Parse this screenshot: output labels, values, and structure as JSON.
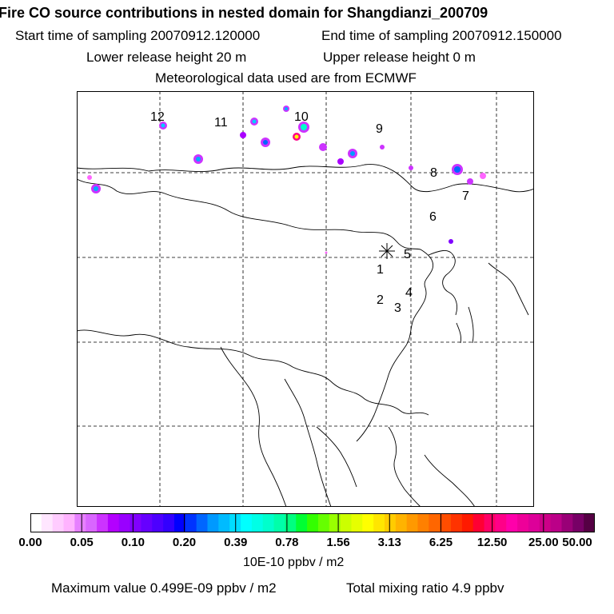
{
  "header": {
    "title": "Fire CO source contributions in nested domain for Shangdianzi_200709",
    "start_time_label": "Start time of sampling 20070912.120000",
    "end_time_label": "End time of sampling 20070912.150000",
    "lower_release": "Lower release height   20 m",
    "upper_release": "Upper release height    0 m",
    "meteo": "Meteorological data used are from ECMWF"
  },
  "map": {
    "receptor_labels": [
      "12",
      "11",
      "10",
      "9",
      "8",
      "7",
      "6",
      "5",
      "1",
      "4",
      "2",
      "3"
    ]
  },
  "colorbar": {
    "colors": [
      "#ffffff",
      "#ffe6ff",
      "#ffccff",
      "#ffb3ff",
      "#e680ff",
      "#d966ff",
      "#cc33ff",
      "#b300ff",
      "#9900ff",
      "#8000ff",
      "#6600ff",
      "#4d00ff",
      "#3300ff",
      "#0000ff",
      "#0033ff",
      "#0066ff",
      "#0099ff",
      "#00bbff",
      "#00ddff",
      "#00ffff",
      "#00ffe6",
      "#00ffcc",
      "#00ffaa",
      "#00ff80",
      "#00ff33",
      "#33ff00",
      "#66ff00",
      "#99ff00",
      "#ccff00",
      "#e6ff00",
      "#ffff00",
      "#ffe600",
      "#ffcc00",
      "#ffb300",
      "#ff9900",
      "#ff8000",
      "#ff6600",
      "#ff4d00",
      "#ff3300",
      "#ff1a00",
      "#ff0033",
      "#ff0066",
      "#ff0088",
      "#ff00aa",
      "#ee0099",
      "#dd0099",
      "#cc0088",
      "#bb0088",
      "#990077",
      "#770066",
      "#550044"
    ],
    "tick_labels": [
      "0.00",
      "0.05",
      "0.10",
      "0.20",
      "0.39",
      "0.78",
      "1.56",
      "3.13",
      "6.25",
      "12.50",
      "25.00",
      "50.00"
    ],
    "unit": "10E-10 ppbv / m2"
  },
  "footer": {
    "max_label": "Maximum value  0.499E-09 ppbv / m2",
    "total_label": "Total mixing ratio       4.9 ppbv"
  }
}
